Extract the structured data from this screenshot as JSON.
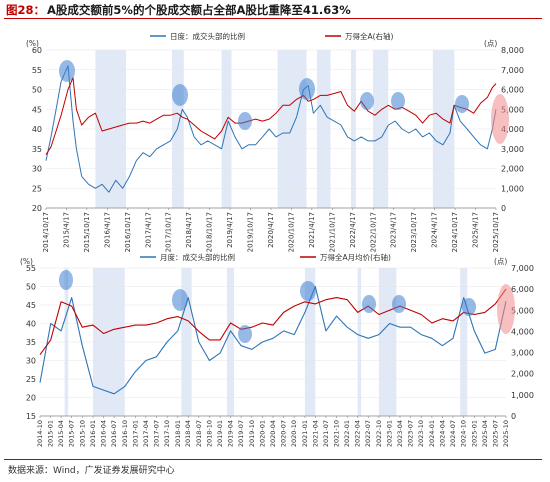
{
  "figure": {
    "prefix": "图28：",
    "title": "A股成交额前5%的个股成交额占全部A股比重降至41.63%",
    "source": "数据来源：Wind，广发证券发展研究中心"
  },
  "chart_data": [
    {
      "type": "line",
      "frequency": "daily",
      "y_unit_left": "(%)",
      "y_unit_right": "(点)",
      "ylim_left": [
        20,
        60
      ],
      "ylim_right": [
        0,
        8000
      ],
      "yticks_left": [
        20,
        25,
        30,
        35,
        40,
        45,
        50,
        55,
        60
      ],
      "yticks_right": [
        0,
        1000,
        2000,
        3000,
        4000,
        5000,
        6000,
        7000,
        8000
      ],
      "x_ticks": [
        "2014/10/17",
        "2015/4/17",
        "2015/10/17",
        "2016/4/17",
        "2016/10/17",
        "2017/4/17",
        "2017/10/17",
        "2018/4/17",
        "2018/10/17",
        "2019/4/17",
        "2019/10/17",
        "2020/4/17",
        "2020/10/17",
        "2021/4/17",
        "2021/10/17",
        "2022/4/17",
        "2022/10/17",
        "2023/4/17",
        "2023/10/17",
        "2024/4/17",
        "2024/10/17",
        "2025/4/17",
        "2025/10/17"
      ],
      "series": [
        {
          "name": "日度：成交头部的比例",
          "axis": "left",
          "color": "#2e75b6",
          "x": [
            "2014/10/17",
            "2014/12/1",
            "2015/1/15",
            "2015/3/1",
            "2015/5/1",
            "2015/6/15",
            "2015/7/15",
            "2015/9/1",
            "2015/11/1",
            "2016/1/1",
            "2016/3/1",
            "2016/5/1",
            "2016/7/1",
            "2016/9/1",
            "2016/11/1",
            "2017/1/1",
            "2017/3/1",
            "2017/5/1",
            "2017/7/1",
            "2017/9/1",
            "2017/11/1",
            "2018/1/1",
            "2018/2/15",
            "2018/4/1",
            "2018/6/1",
            "2018/8/1",
            "2018/10/1",
            "2018/12/1",
            "2019/2/1",
            "2019/4/1",
            "2019/6/1",
            "2019/8/1",
            "2019/10/1",
            "2019/12/1",
            "2020/2/1",
            "2020/4/1",
            "2020/6/1",
            "2020/8/1",
            "2020/10/1",
            "2020/12/1",
            "2021/2/1",
            "2021/3/15",
            "2021/5/1",
            "2021/7/1",
            "2021/9/1",
            "2021/11/1",
            "2022/1/1",
            "2022/3/1",
            "2022/5/1",
            "2022/7/1",
            "2022/9/1",
            "2022/11/1",
            "2023/1/1",
            "2023/3/1",
            "2023/5/1",
            "2023/7/1",
            "2023/9/1",
            "2023/11/1",
            "2024/1/1",
            "2024/3/1",
            "2024/5/1",
            "2024/7/1",
            "2024/9/1",
            "2024/10/8",
            "2024/12/1",
            "2025/2/1",
            "2025/4/1",
            "2025/6/1",
            "2025/8/1",
            "2025/9/15",
            "2025/10/17"
          ],
          "y": [
            32,
            38,
            45,
            52,
            56,
            42,
            35,
            28,
            26,
            25,
            26,
            24,
            27,
            25,
            28,
            32,
            34,
            33,
            35,
            36,
            37,
            40,
            45,
            43,
            38,
            36,
            37,
            36,
            35,
            42,
            38,
            35,
            36,
            36,
            38,
            40,
            38,
            39,
            39,
            43,
            50,
            51,
            44,
            46,
            43,
            42,
            41,
            38,
            37,
            38,
            37,
            37,
            38,
            41,
            42,
            40,
            39,
            40,
            38,
            39,
            37,
            36,
            39,
            46,
            42,
            40,
            38,
            36,
            35,
            40,
            45
          ]
        },
        {
          "name": "万得全A(右轴)",
          "axis": "right",
          "color": "#c00000",
          "x": [
            "2014/10/17",
            "2014/12/1",
            "2015/1/15",
            "2015/3/1",
            "2015/5/1",
            "2015/6/15",
            "2015/7/15",
            "2015/9/1",
            "2015/11/1",
            "2016/1/1",
            "2016/3/1",
            "2016/5/1",
            "2016/7/1",
            "2016/9/1",
            "2016/11/1",
            "2017/1/1",
            "2017/3/1",
            "2017/5/1",
            "2017/7/1",
            "2017/9/1",
            "2017/11/1",
            "2018/1/1",
            "2018/2/15",
            "2018/4/1",
            "2018/6/1",
            "2018/8/1",
            "2018/10/1",
            "2018/12/1",
            "2019/2/1",
            "2019/4/1",
            "2019/6/1",
            "2019/8/1",
            "2019/10/1",
            "2019/12/1",
            "2020/2/1",
            "2020/4/1",
            "2020/6/1",
            "2020/8/1",
            "2020/10/1",
            "2020/12/1",
            "2021/2/1",
            "2021/3/15",
            "2021/5/1",
            "2021/7/1",
            "2021/9/1",
            "2021/11/1",
            "2022/1/1",
            "2022/3/1",
            "2022/5/1",
            "2022/7/1",
            "2022/9/1",
            "2022/11/1",
            "2023/1/1",
            "2023/3/1",
            "2023/5/1",
            "2023/7/1",
            "2023/9/1",
            "2023/11/1",
            "2024/1/1",
            "2024/3/1",
            "2024/5/1",
            "2024/7/1",
            "2024/9/1",
            "2024/10/8",
            "2024/12/1",
            "2025/2/1",
            "2025/4/1",
            "2025/6/1",
            "2025/8/1",
            "2025/9/15",
            "2025/10/17"
          ],
          "y": [
            2700,
            3100,
            3900,
            4700,
            6000,
            6600,
            5000,
            4200,
            4600,
            4800,
            3900,
            4000,
            4100,
            4200,
            4300,
            4300,
            4400,
            4300,
            4500,
            4700,
            4700,
            4800,
            4600,
            4500,
            4200,
            3900,
            3700,
            3500,
            3900,
            4600,
            4300,
            4300,
            4400,
            4500,
            4400,
            4500,
            4800,
            5200,
            5200,
            5500,
            5700,
            5400,
            5500,
            5700,
            5700,
            5800,
            5900,
            5200,
            4900,
            5400,
            4900,
            4700,
            5000,
            5200,
            5000,
            5100,
            4900,
            4700,
            4300,
            4700,
            4800,
            4500,
            4300,
            5200,
            5100,
            5000,
            4800,
            5300,
            5600,
            6100,
            6300
          ]
        }
      ],
      "shaded_periods": [
        [
          "2016/1/1",
          "2016/10/1"
        ],
        [
          "2017/11/15",
          "2018/2/28"
        ],
        [
          "2019/2/1",
          "2019/4/30"
        ],
        [
          "2020/6/15",
          "2021/2/28"
        ],
        [
          "2021/6/1",
          "2021/9/30"
        ],
        [
          "2022/4/1",
          "2022/5/15"
        ],
        [
          "2022/10/15",
          "2023/2/28"
        ],
        [
          "2024/4/1",
          "2024/10/10"
        ]
      ]
    },
    {
      "type": "line",
      "frequency": "monthly",
      "y_unit_left": "(%)",
      "y_unit_right": "(点)",
      "ylim_left": [
        15,
        55
      ],
      "ylim_right": [
        0,
        7000
      ],
      "yticks_left": [
        15,
        20,
        25,
        30,
        35,
        40,
        45,
        50,
        55
      ],
      "yticks_right": [
        0,
        1000,
        2000,
        3000,
        4000,
        5000,
        6000,
        7000
      ],
      "x_ticks": [
        "2014-10",
        "2015-01",
        "2015-04",
        "2015-07",
        "2015-10",
        "2016-01",
        "2016-04",
        "2016-07",
        "2016-10",
        "2017-01",
        "2017-04",
        "2017-07",
        "2017-10",
        "2018-01",
        "2018-04",
        "2018-07",
        "2018-10",
        "2019-01",
        "2019-04",
        "2019-07",
        "2019-10",
        "2020-01",
        "2020-04",
        "2020-07",
        "2020-10",
        "2021-01",
        "2021-04",
        "2021-07",
        "2021-10",
        "2022-01",
        "2022-04",
        "2022-07",
        "2022-10",
        "2023-01",
        "2023-04",
        "2023-07",
        "2023-10",
        "2024-01",
        "2024-04",
        "2024-07",
        "2024-10",
        "2025-01",
        "2025-04",
        "2025-07",
        "2025-10"
      ],
      "series": [
        {
          "name": "月度：成交头部的比例",
          "axis": "left",
          "color": "#2e75b6",
          "x": [
            "2014-10",
            "2015-01",
            "2015-04",
            "2015-07",
            "2015-10",
            "2016-01",
            "2016-04",
            "2016-07",
            "2016-10",
            "2017-01",
            "2017-04",
            "2017-07",
            "2017-10",
            "2018-01",
            "2018-04",
            "2018-07",
            "2018-10",
            "2019-01",
            "2019-04",
            "2019-07",
            "2019-10",
            "2020-01",
            "2020-04",
            "2020-07",
            "2020-10",
            "2021-01",
            "2021-04",
            "2021-07",
            "2021-10",
            "2022-01",
            "2022-04",
            "2022-07",
            "2022-10",
            "2023-01",
            "2023-04",
            "2023-07",
            "2023-10",
            "2024-01",
            "2024-04",
            "2024-07",
            "2024-10",
            "2025-01",
            "2025-04",
            "2025-07",
            "2025-10"
          ],
          "y": [
            24,
            40,
            38,
            47,
            34,
            23,
            22,
            21,
            23,
            27,
            30,
            31,
            35,
            38,
            47,
            35,
            30,
            32,
            38,
            34,
            33,
            35,
            36,
            38,
            37,
            43,
            50,
            38,
            42,
            39,
            37,
            36,
            37,
            40,
            39,
            39,
            37,
            36,
            34,
            36,
            47,
            38,
            32,
            33,
            46
          ]
        },
        {
          "name": "万得全A月均价(右轴)",
          "axis": "right",
          "color": "#c00000",
          "x": [
            "2014-10",
            "2015-01",
            "2015-04",
            "2015-07",
            "2015-10",
            "2016-01",
            "2016-04",
            "2016-07",
            "2016-10",
            "2017-01",
            "2017-04",
            "2017-07",
            "2017-10",
            "2018-01",
            "2018-04",
            "2018-07",
            "2018-10",
            "2019-01",
            "2019-04",
            "2019-07",
            "2019-10",
            "2020-01",
            "2020-04",
            "2020-07",
            "2020-10",
            "2021-01",
            "2021-04",
            "2021-07",
            "2021-10",
            "2022-01",
            "2022-04",
            "2022-07",
            "2022-10",
            "2023-01",
            "2023-04",
            "2023-07",
            "2023-10",
            "2024-01",
            "2024-04",
            "2024-07",
            "2024-10",
            "2025-01",
            "2025-04",
            "2025-07",
            "2025-10"
          ],
          "y": [
            2900,
            3600,
            5400,
            5200,
            4200,
            4300,
            3900,
            4100,
            4200,
            4300,
            4300,
            4400,
            4600,
            4700,
            4500,
            4000,
            3600,
            3600,
            4400,
            4100,
            4200,
            4400,
            4300,
            4900,
            5200,
            5400,
            5300,
            5500,
            5600,
            5500,
            4900,
            5200,
            4800,
            5000,
            5200,
            5000,
            4800,
            4400,
            4600,
            4500,
            4900,
            4800,
            4900,
            5300,
            6000
          ]
        }
      ],
      "shaded_periods": [
        [
          "2015-05",
          "2015-06"
        ],
        [
          "2016-01",
          "2016-10"
        ],
        [
          "2018-02",
          "2018-05"
        ],
        [
          "2019-03",
          "2019-05"
        ],
        [
          "2021-01",
          "2021-04"
        ],
        [
          "2022-04",
          "2022-05"
        ],
        [
          "2022-10",
          "2023-03"
        ],
        [
          "2024-09",
          "2024-11"
        ]
      ]
    }
  ]
}
